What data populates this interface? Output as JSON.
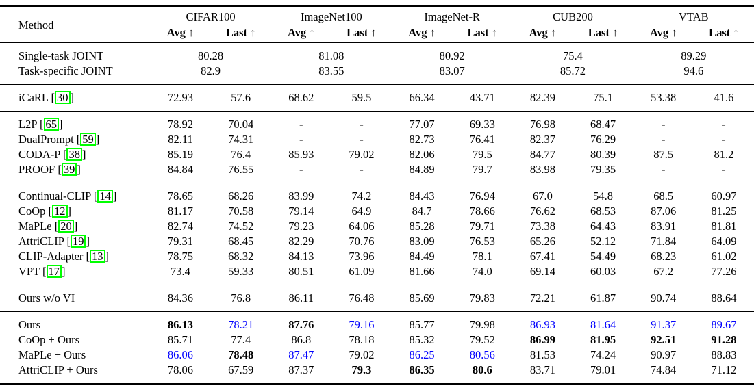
{
  "colors": {
    "text": "#000000",
    "highlight_blue": "#0000ff",
    "citation_box_green": "#00ff00"
  },
  "header": {
    "method": "Method",
    "datasets": [
      "CIFAR100",
      "ImageNet100",
      "ImageNet-R",
      "CUB200",
      "VTAB"
    ],
    "avg_label": "Avg",
    "last_label": "Last",
    "arrow": "↑"
  },
  "joint_rows": [
    {
      "method": "Single-task JOINT",
      "values": [
        "80.28",
        "81.08",
        "80.92",
        "75.4",
        "89.29"
      ]
    },
    {
      "method": "Task-specific JOINT",
      "values": [
        "82.9",
        "83.55",
        "83.07",
        "85.72",
        "94.6"
      ]
    }
  ],
  "sections": [
    {
      "rows": [
        {
          "method": "iCaRL",
          "cite": "30",
          "cells": [
            "72.93",
            "57.6",
            "68.62",
            "59.5",
            "66.34",
            "43.71",
            "82.39",
            "75.1",
            "53.38",
            "41.6"
          ]
        }
      ]
    },
    {
      "rows": [
        {
          "method": "L2P",
          "cite": "65",
          "cells": [
            "78.92",
            "70.04",
            "-",
            "-",
            "77.07",
            "69.33",
            "76.98",
            "68.47",
            "-",
            "-"
          ]
        },
        {
          "method": "DualPrompt",
          "cite": "59",
          "cells": [
            "82.11",
            "74.31",
            "-",
            "-",
            "82.73",
            "76.41",
            "82.37",
            "76.29",
            "-",
            "-"
          ]
        },
        {
          "method": "CODA-P",
          "cite": "38",
          "cells": [
            "85.19",
            "76.4",
            "85.93",
            "79.02",
            "82.06",
            "79.5",
            "84.77",
            "80.39",
            "87.5",
            "81.2"
          ]
        },
        {
          "method": "PROOF",
          "cite": "39",
          "cells": [
            "84.84",
            "76.55",
            "-",
            "-",
            "84.89",
            "79.7",
            "83.98",
            "79.35",
            "-",
            "-"
          ]
        }
      ]
    },
    {
      "rows": [
        {
          "method": "Continual-CLIP",
          "cite": "14",
          "cells": [
            "78.65",
            "68.26",
            "83.99",
            "74.2",
            "84.43",
            "76.94",
            "67.0",
            "54.8",
            "68.5",
            "60.97"
          ]
        },
        {
          "method": "CoOp",
          "cite": "12",
          "cells": [
            "81.17",
            "70.58",
            "79.14",
            "64.9",
            "84.7",
            "78.66",
            "76.62",
            "68.53",
            "87.06",
            "81.25"
          ]
        },
        {
          "method": "MaPLe",
          "cite": "20",
          "cells": [
            "82.74",
            "74.52",
            "79.23",
            "64.06",
            "85.28",
            "79.71",
            "73.38",
            "64.43",
            "83.91",
            "81.81"
          ]
        },
        {
          "method": "AttriCLIP",
          "cite": "19",
          "cells": [
            "79.31",
            "68.45",
            "82.29",
            "70.76",
            "83.09",
            "76.53",
            "65.26",
            "52.12",
            "71.84",
            "64.09"
          ]
        },
        {
          "method": "CLIP-Adapter",
          "cite": "13",
          "cells": [
            "78.75",
            "68.32",
            "84.13",
            "73.96",
            "84.49",
            "78.1",
            "67.41",
            "54.49",
            "68.23",
            "61.02"
          ]
        },
        {
          "method": "VPT",
          "cite": "17",
          "cells": [
            "73.4",
            "59.33",
            "80.51",
            "61.09",
            "81.66",
            "74.0",
            "69.14",
            "60.03",
            "67.2",
            "77.26"
          ]
        }
      ]
    },
    {
      "rows": [
        {
          "method": "Ours w/o VI",
          "cells": [
            "84.36",
            "76.8",
            "86.11",
            "76.48",
            "85.69",
            "79.83",
            "72.21",
            "61.87",
            "90.74",
            "88.64"
          ]
        }
      ]
    },
    {
      "rows": [
        {
          "method": "Ours",
          "cells": [
            {
              "v": "86.13",
              "f": "bold"
            },
            {
              "v": "78.21",
              "f": "blue"
            },
            {
              "v": "87.76",
              "f": "bold"
            },
            {
              "v": "79.16",
              "f": "blue"
            },
            "85.77",
            "79.98",
            {
              "v": "86.93",
              "f": "blue"
            },
            {
              "v": "81.64",
              "f": "blue"
            },
            {
              "v": "91.37",
              "f": "blue"
            },
            {
              "v": "89.67",
              "f": "blue"
            }
          ]
        },
        {
          "method": "CoOp + Ours",
          "cells": [
            "85.71",
            "77.4",
            "86.8",
            "78.18",
            "85.32",
            "79.52",
            {
              "v": "86.99",
              "f": "bold"
            },
            {
              "v": "81.95",
              "f": "bold"
            },
            {
              "v": "92.51",
              "f": "bold"
            },
            {
              "v": "91.28",
              "f": "bold"
            }
          ]
        },
        {
          "method": "MaPLe + Ours",
          "cells": [
            {
              "v": "86.06",
              "f": "blue"
            },
            {
              "v": "78.48",
              "f": "bold"
            },
            {
              "v": "87.47",
              "f": "blue"
            },
            "79.02",
            {
              "v": "86.25",
              "f": "blue"
            },
            {
              "v": "80.56",
              "f": "blue"
            },
            "81.53",
            "74.24",
            "90.97",
            "88.83"
          ]
        },
        {
          "method": "AttriCLIP + Ours",
          "cells": [
            "78.06",
            "67.59",
            "87.37",
            {
              "v": "79.3",
              "f": "bold"
            },
            {
              "v": "86.35",
              "f": "bold"
            },
            {
              "v": "80.6",
              "f": "bold"
            },
            "83.71",
            "79.01",
            "74.84",
            "71.12"
          ]
        }
      ]
    }
  ]
}
